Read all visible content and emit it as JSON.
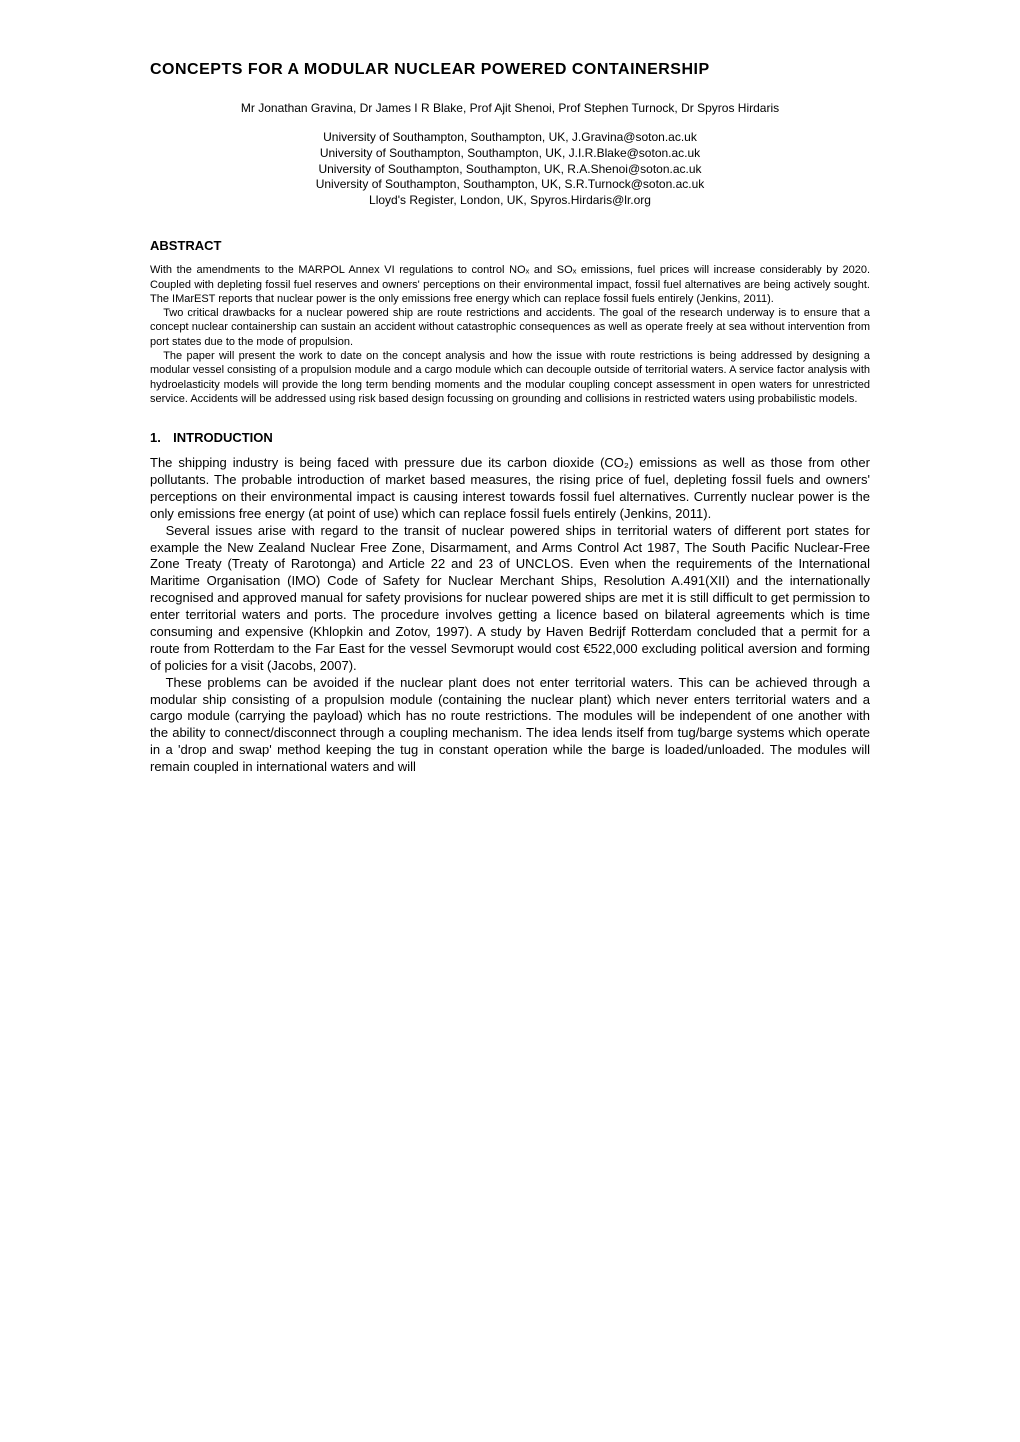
{
  "title": "CONCEPTS FOR A MODULAR NUCLEAR POWERED CONTAINERSHIP",
  "authors": "Mr Jonathan Gravina, Dr James I R Blake, Prof Ajit Shenoi, Prof Stephen Turnock, Dr Spyros Hirdaris",
  "affiliations": [
    "University of Southampton, Southampton, UK, J.Gravina@soton.ac.uk",
    "University of Southampton, Southampton, UK, J.I.R.Blake@soton.ac.uk",
    "University of Southampton, Southampton, UK, R.A.Shenoi@soton.ac.uk",
    "University of Southampton, Southampton, UK, S.R.Turnock@soton.ac.uk",
    "Lloyd's Register, London, UK, Spyros.Hirdaris@lr.org"
  ],
  "abstract": {
    "heading": "ABSTRACT",
    "paragraphs": [
      "With the amendments to the MARPOL Annex VI regulations to control NOₓ and SOₓ emissions, fuel prices will increase considerably by 2020. Coupled with depleting fossil fuel reserves and owners' perceptions on their environmental impact, fossil fuel alternatives are being actively sought. The IMarEST reports that nuclear power is the only emissions free energy which can replace fossil fuels entirely (Jenkins, 2011).",
      "Two critical drawbacks for a nuclear powered ship are route restrictions and accidents. The goal of the research underway is to ensure that a concept nuclear containership can sustain an accident without catastrophic consequences as well as operate freely at sea without intervention from port states due to the mode of propulsion.",
      "The paper will present the work to date on the concept analysis and how the issue with route restrictions is being addressed by designing a modular vessel consisting of a propulsion module and a cargo module which can decouple outside of territorial waters. A service factor analysis with hydroelasticity models will provide the long term bending moments and the modular coupling concept assessment in open waters for unrestricted service. Accidents will be addressed using risk based design focussing on grounding and collisions in restricted waters using probabilistic models."
    ]
  },
  "introduction": {
    "number": "1.",
    "heading": "INTRODUCTION",
    "paragraphs": [
      "The shipping industry is being faced with pressure due its carbon dioxide (CO₂) emissions as well as those from other pollutants. The probable introduction of market based measures, the rising price of fuel, depleting fossil fuels and owners' perceptions on their environmental impact is causing interest towards fossil fuel alternatives. Currently nuclear power is the only emissions free energy (at point of use) which can replace fossil fuels entirely (Jenkins, 2011).",
      "Several issues arise with regard to the transit of nuclear powered ships in territorial waters of different port states for example the New Zealand Nuclear Free Zone, Disarmament, and Arms Control Act 1987, The South Pacific Nuclear-Free Zone Treaty (Treaty of Rarotonga) and Article 22 and 23 of UNCLOS. Even when the requirements of the International Maritime Organisation (IMO) Code of Safety for Nuclear Merchant Ships, Resolution A.491(XII) and the internationally recognised and approved manual for safety provisions for nuclear powered ships are met it is still difficult to get permission to enter territorial waters and ports. The procedure involves getting a licence based on bilateral agreements which is time consuming and expensive (Khlopkin and Zotov, 1997). A study by Haven Bedrijf Rotterdam concluded that a permit for a route from Rotterdam to the Far East for the vessel Sevmorupt would cost €522,000 excluding political aversion and forming of policies for a visit (Jacobs, 2007).",
      "These problems can be avoided if the nuclear plant does not enter territorial waters. This can be achieved through a modular ship consisting of a propulsion module (containing the nuclear plant) which never enters territorial waters and a cargo module (carrying the payload) which has no route restrictions. The modules will be independent of one another with the ability to connect/disconnect through a coupling mechanism. The idea lends itself from tug/barge systems which operate in a 'drop and swap' method keeping the tug in constant operation while the barge is loaded/unloaded. The modules will remain coupled in international waters and will"
    ]
  }
}
